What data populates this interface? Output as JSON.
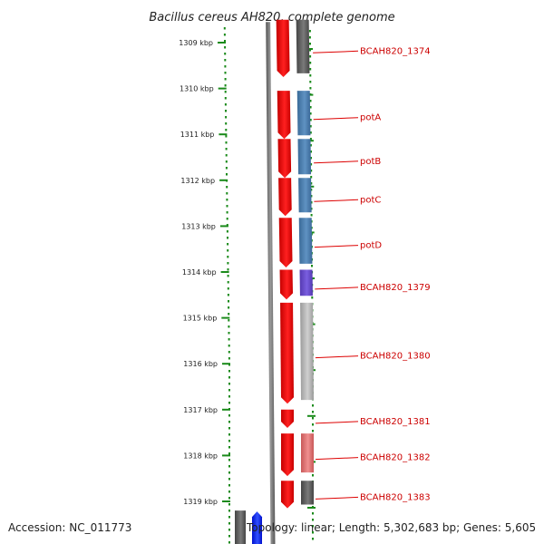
{
  "title": "Bacillus cereus AH820, complete genome",
  "accession_text": "Accession: NC_011773",
  "summary_text": "Topology: linear; Length: 5,302,683 bp; Genes: 5,605",
  "colors": {
    "backbone": "#7a7a7a",
    "ruler_tick": "#1a8a1a",
    "ruler_dot": "#1a8a1a",
    "label_line": "#dd0000",
    "label_text": "#cc0000",
    "red_gene": "#ee1111",
    "blue_gene": "#4a7fb0",
    "purple_gene": "#6a4fc8",
    "lightgray_gene": "#b8b8b8",
    "pink_gene": "#e07878",
    "darkgray_gene": "#666666",
    "bright_blue_gene": "#1a3cff"
  },
  "ruler": {
    "unit": "kbp",
    "ticks": [
      {
        "kbp": 1309,
        "label": "1309 kbp"
      },
      {
        "kbp": 1310,
        "label": "1310 kbp"
      },
      {
        "kbp": 1311,
        "label": "1311 kbp"
      },
      {
        "kbp": 1312,
        "label": "1312 kbp"
      },
      {
        "kbp": 1313,
        "label": "1313 kbp"
      },
      {
        "kbp": 1314,
        "label": "1314 kbp"
      },
      {
        "kbp": 1315,
        "label": "1315 kbp"
      },
      {
        "kbp": 1316,
        "label": "1316 kbp"
      },
      {
        "kbp": 1317,
        "label": "1317 kbp"
      },
      {
        "kbp": 1318,
        "label": "1318 kbp"
      },
      {
        "kbp": 1319,
        "label": "1319 kbp"
      }
    ]
  },
  "genes": [
    {
      "name": "BCAH820_1374",
      "start_kbp": 1308.5,
      "end_kbp": 1309.75,
      "cog_color": "darkgray_gene"
    },
    {
      "name": "potA",
      "start_kbp": 1310.05,
      "end_kbp": 1311.1,
      "cog_color": "blue_gene"
    },
    {
      "name": "potB",
      "start_kbp": 1311.1,
      "end_kbp": 1311.95,
      "cog_color": "blue_gene"
    },
    {
      "name": "potC",
      "start_kbp": 1311.95,
      "end_kbp": 1312.78,
      "cog_color": "blue_gene"
    },
    {
      "name": "potD",
      "start_kbp": 1312.82,
      "end_kbp": 1313.9,
      "cog_color": "blue_gene"
    },
    {
      "name": "BCAH820_1379",
      "start_kbp": 1313.95,
      "end_kbp": 1314.6,
      "cog_color": "purple_gene"
    },
    {
      "name": "BCAH820_1380",
      "start_kbp": 1314.67,
      "end_kbp": 1316.87,
      "cog_color": "lightgray_gene"
    },
    {
      "name": "BCAH820_1381",
      "start_kbp": 1317.0,
      "end_kbp": 1317.4,
      "cog_color": null
    },
    {
      "name": "BCAH820_1382",
      "start_kbp": 1317.52,
      "end_kbp": 1318.45,
      "cog_color": "pink_gene"
    },
    {
      "name": "BCAH820_1383",
      "start_kbp": 1318.55,
      "end_kbp": 1319.15,
      "cog_color": "darkgray_gene"
    }
  ],
  "lower_left_genes": [
    {
      "name": "lower-gray-gene",
      "start_kbp": 1319.2,
      "end_kbp": 1319.9,
      "color": "darkgray_gene"
    },
    {
      "name": "lower-blue-gene",
      "start_kbp": 1319.22,
      "end_kbp": 1319.9,
      "color": "bright_blue_gene"
    }
  ]
}
